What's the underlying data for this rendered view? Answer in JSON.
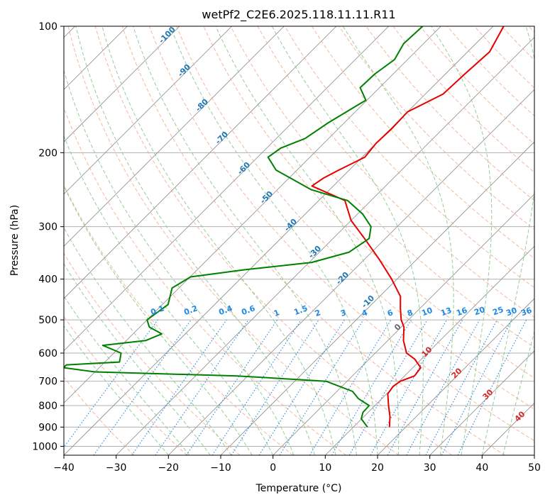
{
  "chart_data": {
    "type": "line",
    "title": "wetPf2_C2E6.2025.118.11.11.R11",
    "xlabel": "Temperature (°C)",
    "ylabel": "Pressure (hPa)",
    "xlim": [
      -40,
      50
    ],
    "ylim": [
      1050,
      100
    ],
    "y_scale": "log",
    "skew": true,
    "grid": true,
    "x_ticks": [
      -40,
      -30,
      -20,
      -10,
      0,
      10,
      20,
      30,
      40,
      50
    ],
    "y_ticks": [
      1000,
      900,
      800,
      700,
      600,
      500,
      400,
      300,
      200,
      100
    ],
    "colors": {
      "temperature": "#e50000",
      "dewpoint": "#008000",
      "dry_adiabat": "#f4a582",
      "moist_adiabat": "#8cc68c",
      "mixing_ratio": "#1e88e5",
      "isotherm": "#8a8a8a",
      "grid": "#b0b0b0",
      "dry_label": "#d62728",
      "moist_label": "#1f77b4",
      "zero_label": "#666666"
    },
    "series": [
      {
        "key": "temperature",
        "p": [
          900,
          850,
          800,
          750,
          720,
          700,
          680,
          650,
          620,
          600,
          560,
          520,
          500,
          470,
          440,
          400,
          360,
          320,
          290,
          260,
          240,
          230,
          220,
          205,
          190,
          175,
          160,
          145,
          130,
          115,
          100
        ],
        "t": [
          16.9,
          15.0,
          12.6,
          10.2,
          9.8,
          10.2,
          11.9,
          11.5,
          8.7,
          6.0,
          3.0,
          0.5,
          -1.4,
          -3.7,
          -6.0,
          -11.0,
          -17.0,
          -24.0,
          -30.0,
          -35.0,
          -44.1,
          -43.4,
          -42.0,
          -39.5,
          -40.0,
          -39.8,
          -40.0,
          -36.6,
          -36.3,
          -35.8,
          -38.0
        ]
      },
      {
        "key": "dewpoint",
        "p": [
          900,
          860,
          830,
          800,
          770,
          740,
          700,
          680,
          665,
          650,
          640,
          630,
          600,
          575,
          560,
          540,
          520,
          500,
          460,
          420,
          395,
          380,
          365,
          345,
          320,
          300,
          280,
          260,
          245,
          220,
          205,
          195,
          185,
          170,
          150,
          140,
          130,
          120,
          110,
          100
        ],
        "t": [
          12.7,
          9.9,
          9.0,
          8.9,
          5.5,
          3.0,
          -4.0,
          -22.0,
          -50.0,
          -56.8,
          -56.8,
          -47.2,
          -48.6,
          -53.6,
          -46.3,
          -44.5,
          -48.2,
          -50.0,
          -48.9,
          -51.3,
          -49.9,
          -41.0,
          -29.5,
          -24.3,
          -23.1,
          -25.0,
          -29.0,
          -34.5,
          -43.5,
          -54.0,
          -58.0,
          -57.3,
          -54.5,
          -53.1,
          -50.2,
          -53.7,
          -53.5,
          -52.5,
          -53.8,
          -53.5
        ]
      }
    ],
    "moist_labels": [
      "-100",
      "-90",
      "-80",
      "-70",
      "-60",
      "-50",
      "-40",
      "-30",
      "-20",
      "-10",
      "0"
    ],
    "mixing_ratio_labels": [
      "0.1",
      "0.2",
      "0.4",
      "0.6",
      "1",
      "1.5",
      "2",
      "3",
      "4",
      "6",
      "8",
      "10",
      "13",
      "16",
      "20",
      "25",
      "30",
      "36"
    ],
    "dry_labels": [
      "10",
      "20",
      "30",
      "40"
    ]
  }
}
